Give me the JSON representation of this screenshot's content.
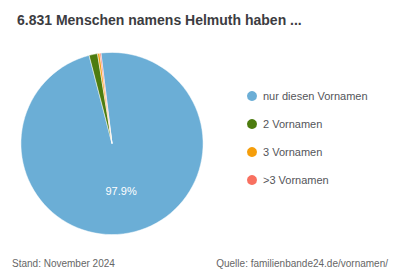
{
  "chart_data": {
    "type": "pie",
    "title": "6.831 Menschen namens Helmuth haben ...",
    "categories": [
      "nur diesen Vornamen",
      "2 Vornamen",
      "3 Vornamen",
      ">3 Vornamen"
    ],
    "values": [
      97.9,
      1.5,
      0.4,
      0.2
    ],
    "value_labels": [
      "97.9%",
      null,
      null,
      null
    ],
    "colors": [
      "#6baed6",
      "#4d7c0f",
      "#f59e0b",
      "#f87060"
    ],
    "legend": "right",
    "annotations": [
      "Stand: November 2024",
      "Quelle: familienbande24.de/vornamen/"
    ]
  }
}
